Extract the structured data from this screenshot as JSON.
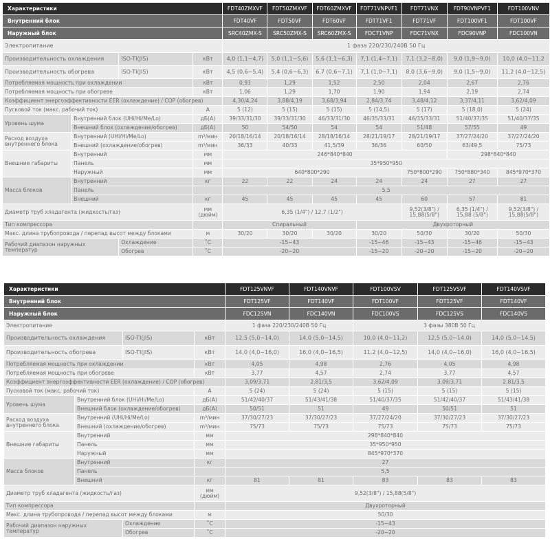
{
  "top": {
    "header": {
      "label": "Характеристики",
      "models": [
        "FDT40ZMXVF",
        "FDT50ZMXVF",
        "FDT60ZMXVF",
        "FDT71VNPVF1",
        "FDT71VNX",
        "FDT90VNPVF1",
        "FDT100VNV"
      ]
    },
    "indoor": {
      "label": "Внутренний блок",
      "values": [
        "FDT40VF",
        "FDT50VF",
        "FDT60VF",
        "FDT71VF1",
        "FDT71VF",
        "FDT100VF1",
        "FDT100VF"
      ]
    },
    "outdoor": {
      "label": "Наружный блок",
      "values": [
        "SRC40ZMX-S",
        "SRC50ZMX-S",
        "SRC60ZMX-S",
        "FDC71VNP",
        "FDC71VNX",
        "FDC90VNP",
        "FDC100VN"
      ]
    },
    "power": {
      "label": "Электропитание",
      "values": [
        "1 фаза 220/230/240В 50 Гц"
      ]
    },
    "cooling": {
      "label": "Производительность охлаждения",
      "standard": "ISO-TI(JIS)",
      "unit": "кВт",
      "values": [
        "4,0 (1,1~4,7)",
        "5,0 (1,1~5,6)",
        "5,6 (1,1~6,3)",
        "7,1 (1,4~7,1)",
        "7,1 (3,2~8,0)",
        "9,0 (1,9~9,0)",
        "10,0 (4,0~11,2"
      ]
    },
    "heating": {
      "label": "Производительность обогрева",
      "standard": "ISO-TI(JIS)",
      "unit": "кВт",
      "values": [
        "4,5 (0,6~5,4)",
        "5,4 (0,6~6,3)",
        "6,7 (0,6~7,1)",
        "7,1 (1,0~7,1)",
        "8,0 (3,6~9,0)",
        "9,0 (1,5~9,0)",
        "11,2 (4,0~12,5)"
      ]
    },
    "power_cooling": {
      "label": "Потребляемая мощность при охлаждении",
      "unit": "кВт",
      "values": [
        "0,93",
        "1,29",
        "1,52",
        "2,50",
        "2,04",
        "2,67",
        "2,76"
      ]
    },
    "power_heating": {
      "label": "Потребляемая мощность при обогреве",
      "unit": "кВт",
      "values": [
        "1,06",
        "1,29",
        "1,70",
        "1,90",
        "1,94",
        "2,19",
        "2,74"
      ]
    },
    "eer_cop": {
      "label": "Коэффициент энергоэффективности EER (охлаждение) / COP (обогрев)",
      "values": [
        "4,30/4,24",
        "3,88/4,19",
        "3,68/3,94",
        "2,84/3,74",
        "3,48/4,12",
        "3,37/4,11",
        "3,62/4,09"
      ]
    },
    "start_current": {
      "label": "Пусковой ток (макс. рабочий ток)",
      "unit": "A",
      "values": [
        "5 (12)",
        "5 (15)",
        "5 (15)",
        "5 (14,5)",
        "5 (17)",
        "5 (18,0)",
        "5 (24)"
      ]
    },
    "noise": {
      "label": "Уровень шума",
      "indoor": {
        "label": "Внутренний блок (UHi/Hi/Me/Lo)",
        "unit": "дБ(А)",
        "values": [
          "39/33/31/30",
          "39/33/31/30",
          "46/33/31/30",
          "46/35/33/31",
          "46/35/33/31",
          "51/40/37/35",
          "51/40/37/35"
        ]
      },
      "outdoor": {
        "label": "Внешний блок (охлаждение/обогрев)",
        "unit": "дБ(А)",
        "values": [
          "50",
          "54/50",
          "54",
          "54",
          "51/48",
          "57/55",
          "49"
        ]
      }
    },
    "airflow": {
      "label": "Расход воздуха внутреннего блока",
      "indoor": {
        "label": "Внутренний (UHi/Hi/Me/Lo)",
        "unit": "m³/мин",
        "values": [
          "20/18/16/14",
          "20/18/16/14",
          "28/18/16/14",
          "28/21/19/17",
          "28/21/19/17",
          "37/27/24/20",
          "37/27/24/20"
        ]
      },
      "outdoor": {
        "label": "Внешний (охлаждение/обогрев)",
        "unit": "m³/мин",
        "values": [
          "36/33",
          "40/33",
          "41,5/39",
          "36/36",
          "60/50",
          "63/49,5",
          "75/73"
        ]
      }
    },
    "dimensions": {
      "label": "Внешние габариты",
      "indoor": {
        "label": "Внутренний",
        "unit": "мм",
        "values": [
          "246*840*840",
          "298*840*840"
        ]
      },
      "panel": {
        "label": "Панель",
        "unit": "мм",
        "values": [
          "35*950*950"
        ]
      },
      "outdoor": {
        "label": "Наружный",
        "unit": "мм",
        "values": [
          "640*800*290",
          "750*800*290",
          "750*880*340",
          "845*970*370"
        ]
      }
    },
    "weight": {
      "label": "Масса блоков",
      "indoor": {
        "label": "Внутренний",
        "unit": "кг",
        "values": [
          "22",
          "22",
          "24",
          "24",
          "24",
          "27",
          "27"
        ]
      },
      "panel": {
        "label": "Панель",
        "values": [
          "5,5"
        ]
      },
      "outdoor": {
        "label": "Внешний",
        "unit": "кг",
        "values": [
          "45",
          "45",
          "45",
          "45",
          "60",
          "57",
          "81"
        ]
      }
    },
    "pipe_diameter": {
      "label": "Диаметр труб хладагента (жидкость/газ)",
      "unit": "мм (дюйм)",
      "values": [
        "6,35 (1/4\") / 12,7 (1/2\")",
        "9,52(3/8\") / 15,88(5/8\")",
        "6,35 (1/4\") / 15,88 (5/8\")",
        "9,52(3/8\") / 15,88(5/8\")"
      ]
    },
    "compressor": {
      "label": "Тип компрессора",
      "values": [
        "Спиральный",
        "Двухроторный"
      ]
    },
    "pipe_length": {
      "label": "Макс. длина трубопровода / перепад высот между блоками",
      "unit": "м",
      "values": [
        "30/20",
        "30/20",
        "30/20",
        "30/20",
        "50/30",
        "30/20",
        "50/30"
      ]
    },
    "temp_range": {
      "label": "Рабочий диапазон наружных температур",
      "cooling": {
        "label": "Охлаждение",
        "unit": "˚С",
        "values": [
          "-15~43",
          "-15~46",
          "-15~43",
          "-15~46",
          "-15~43"
        ]
      },
      "heating": {
        "label": "Обогрев",
        "unit": "˚С",
        "values": [
          "-20~20",
          "-15~20",
          "-20~20",
          "-15~20",
          "-20~20"
        ]
      }
    }
  },
  "bottom": {
    "header": {
      "label": "Характеристики",
      "models": [
        "FDT125VNVF",
        "FDT140VNVF",
        "FDT100VSV",
        "FDT125VSVF",
        "FDT140VSVF"
      ]
    },
    "indoor": {
      "label": "Внутренний блок",
      "values": [
        "FDT125VF",
        "FDT140VF",
        "FDT100VF",
        "FDT125VF",
        "FDT140VF"
      ]
    },
    "outdoor": {
      "label": "Наружный блок",
      "values": [
        "FDC125VN",
        "FDC140VN",
        "FDC100VS",
        "FDC125VS",
        "FDC140VS"
      ]
    },
    "power": {
      "label": "Электропитание",
      "values": [
        "1 фаза 220/230/240В 50 Гц",
        "3 фазы 380В 50 Гц"
      ]
    },
    "cooling": {
      "label": "Производительность охлаждения",
      "standard": "ISO-TI(JIS)",
      "unit": "кВт",
      "values": [
        "12,5 (5,0~14,0)",
        "14,0 (5,0~14,5)",
        "10,0 (4,0~11,2)",
        "12,5 (5,0~14,0)",
        "14,0 (5,0~14,5)"
      ]
    },
    "heating": {
      "label": "Производительность обогрева",
      "standard": "ISO-TI(JIS)",
      "unit": "кВт",
      "values": [
        "14,0 (4,0~16,0)",
        "16,0 (4,0~16,5)",
        "11,2 (4,0~12,5)",
        "14,0 (4,0~16,0)",
        "16,0 (4,0~16,5)"
      ]
    },
    "power_cooling": {
      "label": "Потребляемая мощность при охлаждении",
      "unit": "кВт",
      "values": [
        "4,05",
        "4,98",
        "2,76",
        "4,05",
        "4,98"
      ]
    },
    "power_heating": {
      "label": "Потребляемая мощность при обогреве",
      "unit": "кВт",
      "values": [
        "3,77",
        "4,57",
        "2,74",
        "3,77",
        "4,57"
      ]
    },
    "eer_cop": {
      "label": "Коэффициент энергоэффективности EER (охлаждение) / COP (обогрев)",
      "values": [
        "3,09/3,71",
        "2,81/3,5",
        "3,62/4,09",
        "3,09/3,71",
        "2,81/3,5"
      ]
    },
    "start_current": {
      "label": "Пусковой ток (макс. рабочий ток)",
      "unit": "A",
      "values": [
        "5 (24)",
        "5 (24)",
        "5 (15)",
        "5 (15)",
        "5 (15)"
      ]
    },
    "noise": {
      "label": "Уровень шума",
      "indoor": {
        "label": "Внутренний блок (UHi/Hi/Me/Lo)",
        "unit": "дБ(А)",
        "values": [
          "51/42/40/37",
          "51/43/41/38",
          "51/40/37/35",
          "51/42/40/37",
          "51/43/41/38"
        ]
      },
      "outdoor": {
        "label": "Внешний блок (охлаждение/обогрев)",
        "unit": "дБ(А)",
        "values": [
          "50/51",
          "51",
          "49",
          "50/51",
          "51"
        ]
      }
    },
    "airflow": {
      "label": "Расход воздуха внутреннего блока",
      "indoor": {
        "label": "Внутренний (UHi/Hi/Me/Lo)",
        "unit": "m³/мин",
        "values": [
          "37/30/27/23",
          "37/30/27/23",
          "37/27/24/20",
          "37/30/27/23",
          "37/30/27/23"
        ]
      },
      "outdoor": {
        "label": "Внешний (охлаждение/обогрев)",
        "unit": "m³/мин",
        "values": [
          "75/73",
          "75/73",
          "75/73",
          "75/73",
          "75/73"
        ]
      }
    },
    "dimensions": {
      "label": "Внешние габариты",
      "indoor": {
        "label": "Внутренний",
        "unit": "мм",
        "values": [
          "298*840*840"
        ]
      },
      "panel": {
        "label": "Панель",
        "unit": "мм",
        "values": [
          "35*950*950"
        ]
      },
      "outdoor": {
        "label": "Наружный",
        "unit": "мм",
        "values": [
          "845*970*370"
        ]
      }
    },
    "weight": {
      "label": "Масса блоков",
      "indoor": {
        "label": "Внутренний",
        "unit": "кг",
        "values": [
          "27"
        ]
      },
      "panel": {
        "label": "Панель",
        "values": [
          "5,5"
        ]
      },
      "outdoor": {
        "label": "Внешний",
        "unit": "кг",
        "values": [
          "81",
          "81",
          "83",
          "83",
          "83"
        ]
      }
    },
    "pipe_diameter": {
      "label": "Диаметр труб хладагента (жидкость/газ)",
      "unit": "мм (дюйм)",
      "values": [
        "9,52(3/8\") / 15,88(5/8\")"
      ]
    },
    "compressor": {
      "label": "Тип компрессора",
      "values": [
        "Двухроторный"
      ]
    },
    "pipe_length": {
      "label": "Макс. длина трубопровода / перепад высот между блоками",
      "unit": "м",
      "values": [
        "50/30"
      ]
    },
    "temp_range": {
      "label": "Рабочий диапазон наружных температур",
      "cooling": {
        "label": "Охлаждение",
        "unit": "˚С",
        "values": [
          "-15~43"
        ]
      },
      "heating": {
        "label": "Обогрев",
        "unit": "˚С",
        "values": [
          "-20~20"
        ]
      }
    }
  }
}
